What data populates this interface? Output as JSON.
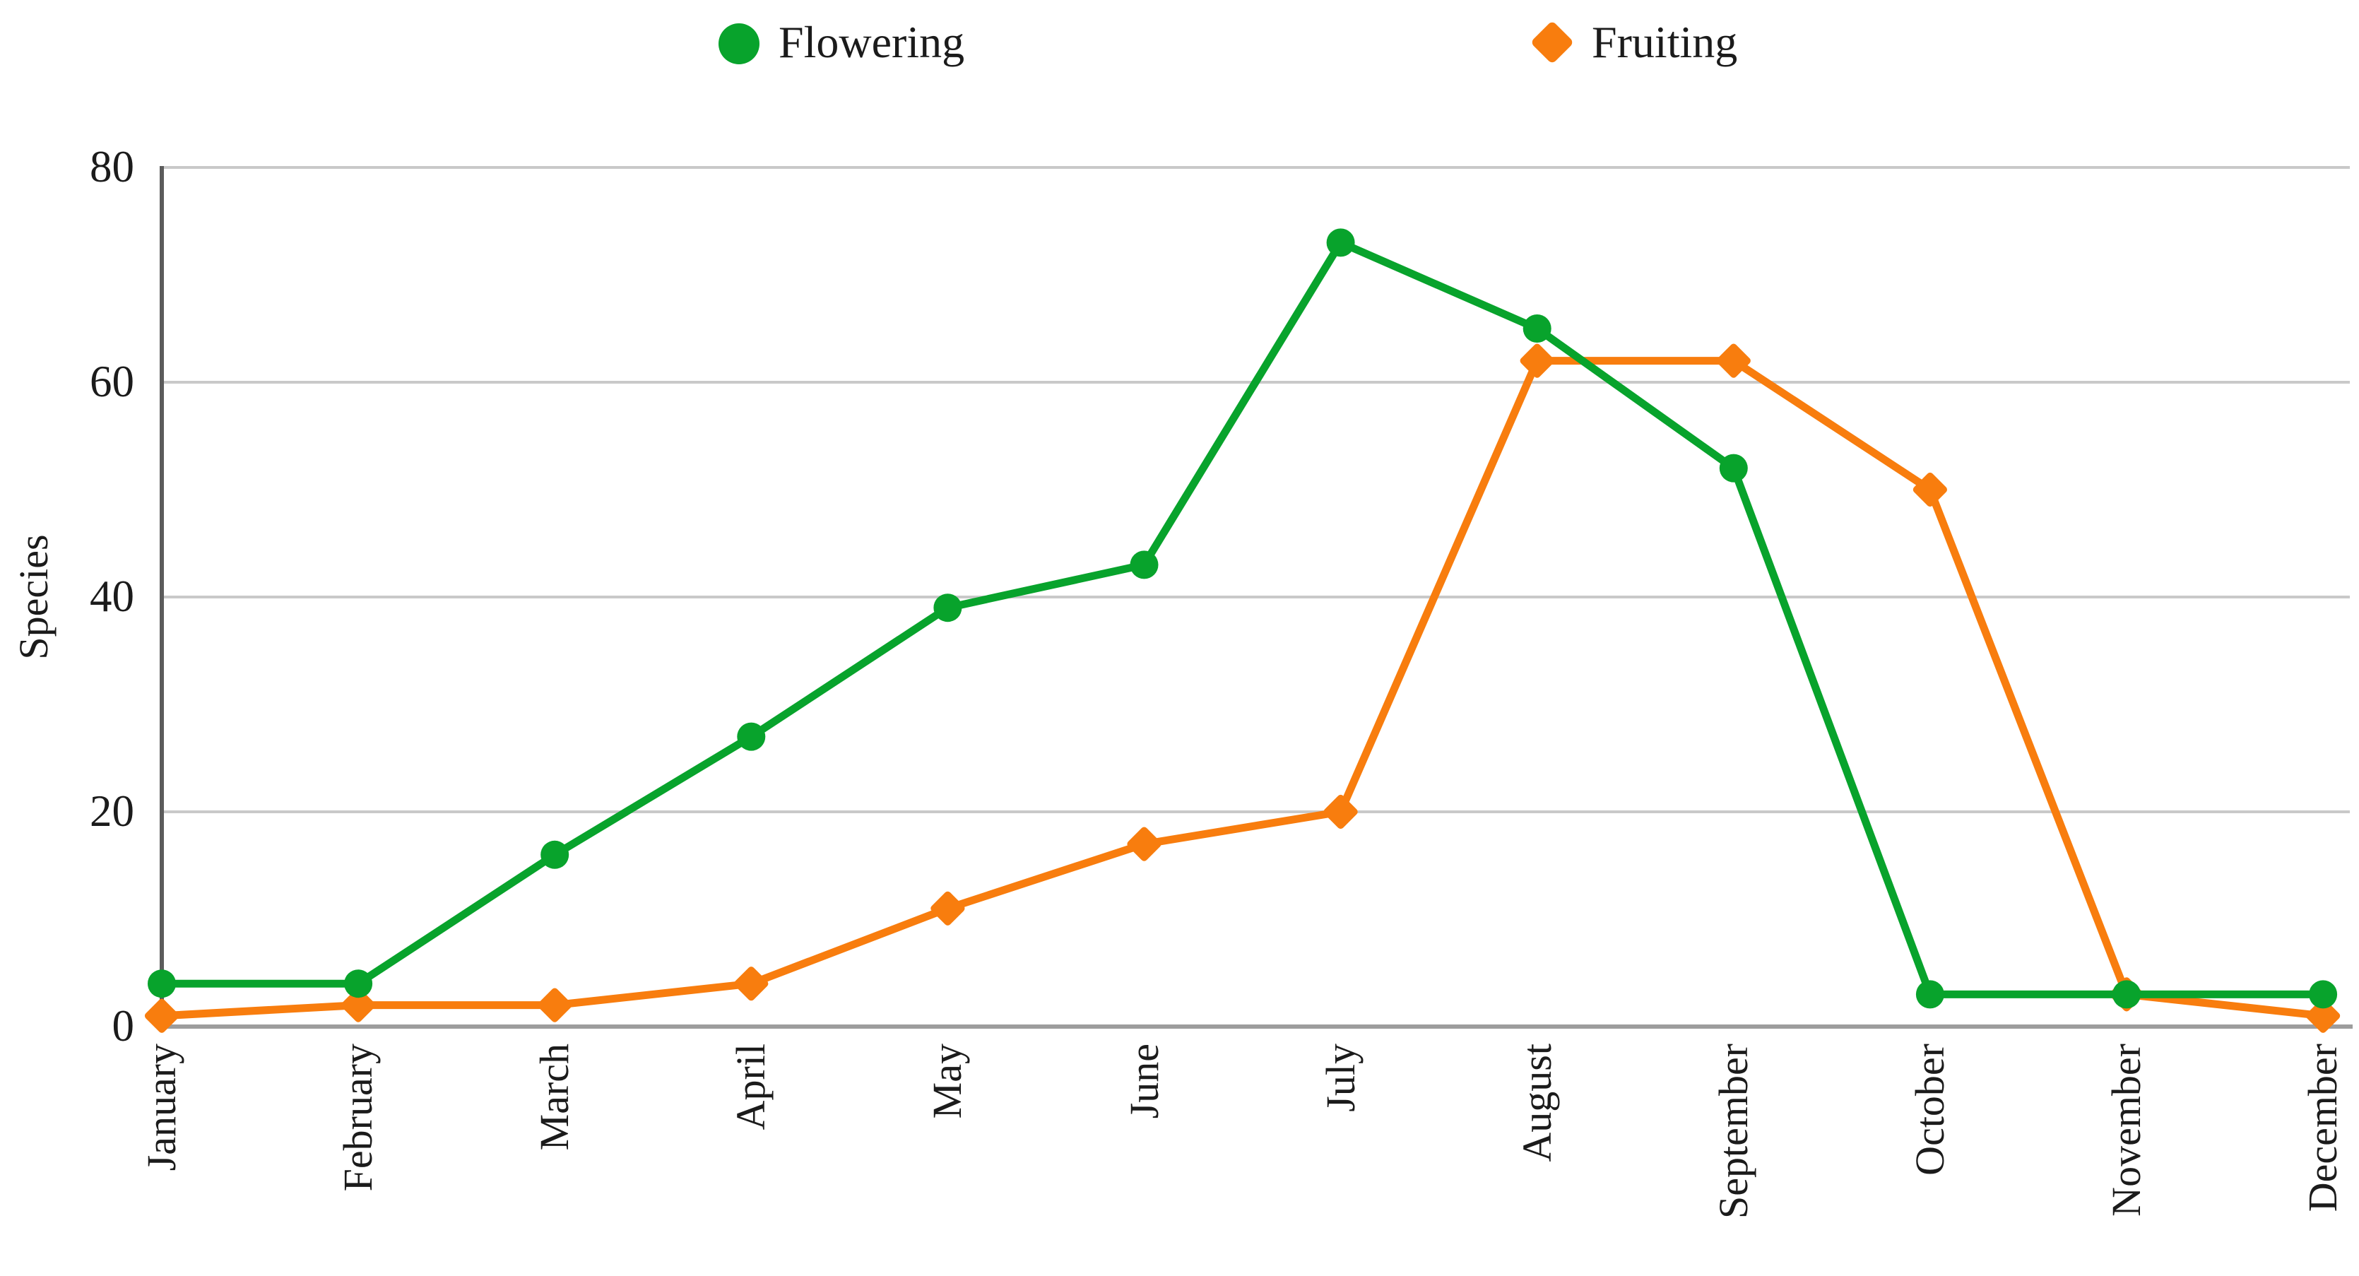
{
  "figure": {
    "description": "Line chart of number of species flowering and fruiting per month"
  },
  "chart_data": {
    "type": "line",
    "title": "",
    "xlabel": "",
    "ylabel": "Species",
    "categories": [
      "January",
      "February",
      "March",
      "April",
      "May",
      "June",
      "July",
      "August",
      "September",
      "October",
      "November",
      "December"
    ],
    "yticks": [
      0,
      20,
      40,
      60,
      80
    ],
    "ylim": [
      0,
      80
    ],
    "grid": true,
    "legend_position": "top",
    "series": [
      {
        "name": "Flowering",
        "marker": "circle",
        "color": "#08a32c",
        "values": [
          4,
          4,
          16,
          27,
          39,
          43,
          73,
          65,
          52,
          3,
          3,
          3
        ]
      },
      {
        "name": "Fruiting",
        "marker": "diamond",
        "color": "#f87d0e",
        "values": [
          1,
          2,
          2,
          4,
          11,
          17,
          20,
          62,
          62,
          50,
          3,
          1
        ]
      }
    ]
  },
  "colors": {
    "flowering": "#08a32c",
    "fruiting": "#f87d0e",
    "gridline": "#c9c9c9",
    "x_axis": "#9d9d9d",
    "y_axis": "#5c5c5c",
    "text": "#1b1b1b",
    "background": "#ffffff"
  }
}
